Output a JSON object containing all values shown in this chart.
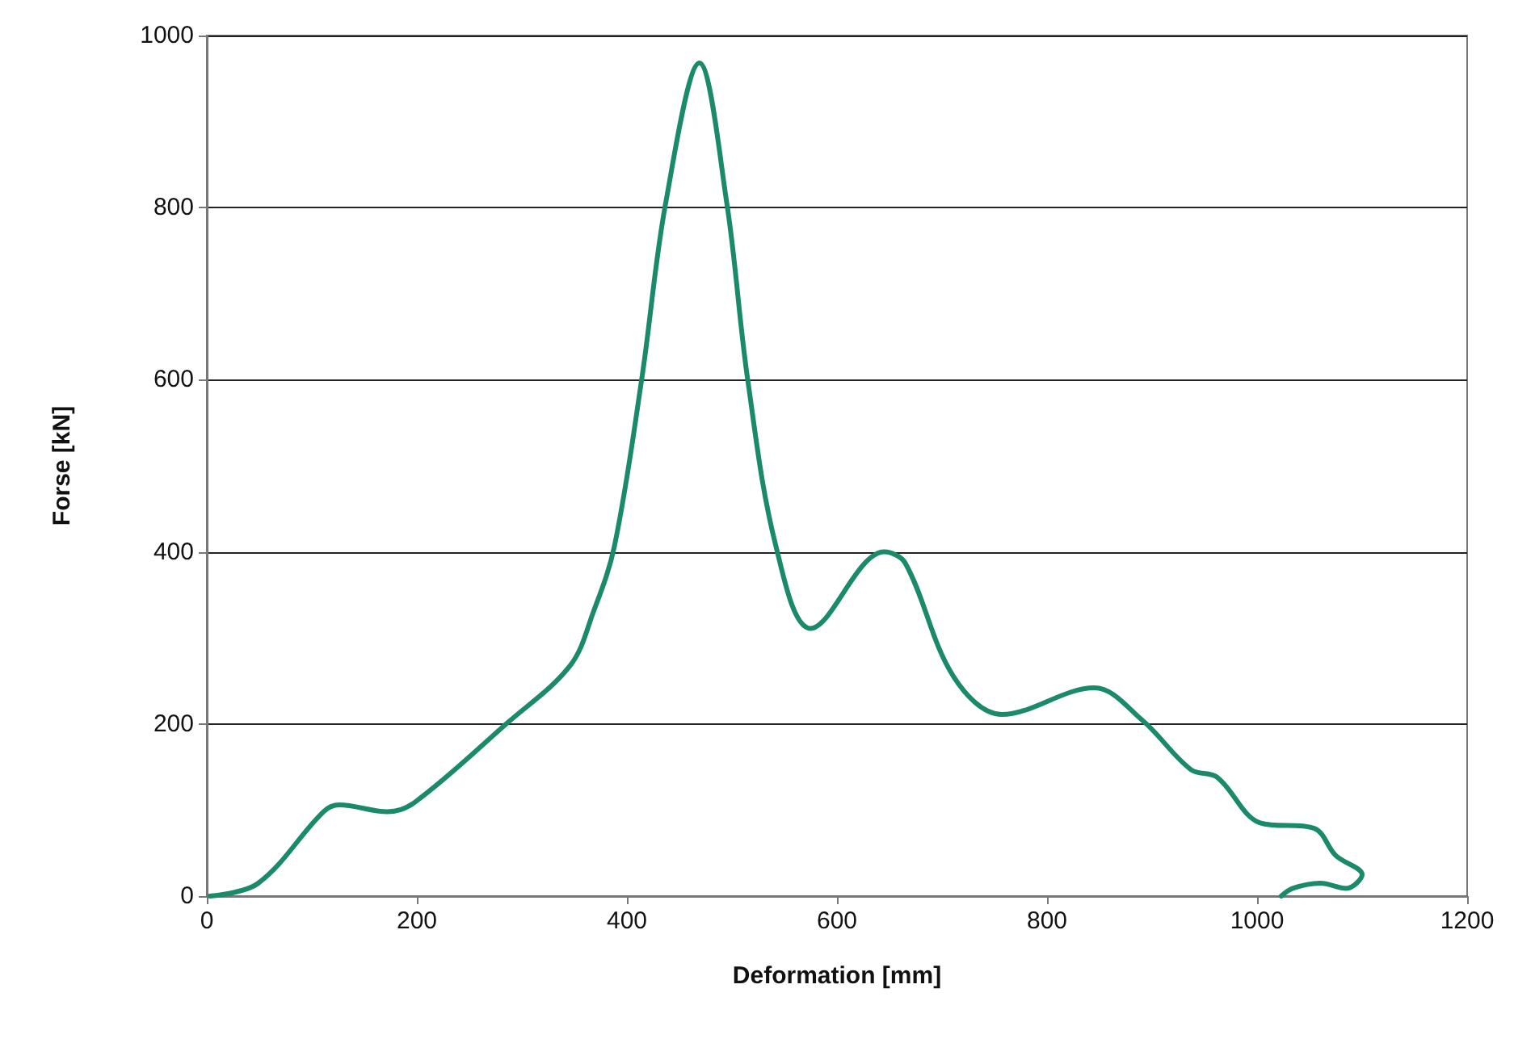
{
  "chart_data": {
    "type": "line",
    "xlabel": "Deformation [mm]",
    "ylabel": "Forse [kN]",
    "xlim": [
      0,
      1200
    ],
    "xticks": [
      0,
      200,
      400,
      600,
      800,
      1000,
      1200
    ],
    "ylim": [
      0,
      1000
    ],
    "yticks": [
      0,
      200,
      400,
      600,
      800,
      1000
    ],
    "grid": "y",
    "marker": "none",
    "line_style": "solid",
    "series": [
      {
        "color": "#1a8a6a",
        "x": [
          3,
          49,
          111,
          126,
          172,
          198,
          285,
          346,
          368,
          388,
          414,
          437,
          469,
          495,
          515,
          542,
          575,
          645,
          665,
          711,
          757,
          845,
          891,
          937,
          962,
          1003,
          1054,
          1075,
          1100,
          1085,
          1060,
          1034,
          1023
        ],
        "values": [
          0,
          15,
          98,
          106,
          98,
          109,
          200,
          268,
          330,
          406,
          600,
          806,
          968,
          806,
          600,
          406,
          311,
          400,
          387,
          255,
          211,
          242,
          204,
          147,
          138,
          85,
          79,
          47,
          25,
          9,
          15,
          9,
          0
        ]
      }
    ]
  }
}
